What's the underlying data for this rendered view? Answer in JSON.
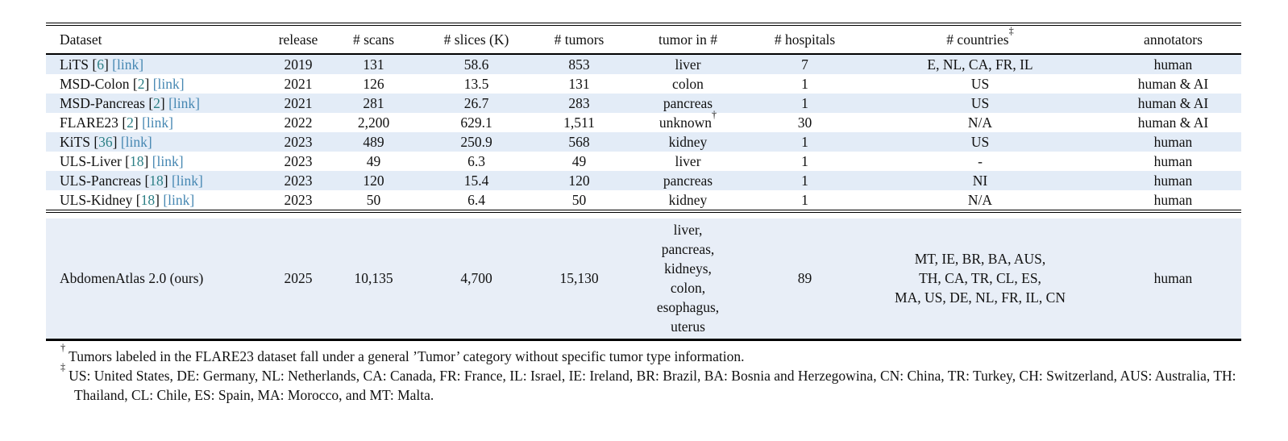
{
  "table": {
    "columns": [
      {
        "key": "dataset",
        "label": "Dataset",
        "sup": ""
      },
      {
        "key": "release",
        "label": "release",
        "sup": ""
      },
      {
        "key": "scans",
        "label": "# scans",
        "sup": ""
      },
      {
        "key": "slices",
        "label": "# slices (K)",
        "sup": ""
      },
      {
        "key": "tumors",
        "label": "# tumors",
        "sup": ""
      },
      {
        "key": "tumor_in",
        "label": "tumor in #",
        "sup": ""
      },
      {
        "key": "hospitals",
        "label": "# hospitals",
        "sup": ""
      },
      {
        "key": "countries",
        "label": "# countries",
        "sup": "‡"
      },
      {
        "key": "annotators",
        "label": "annotators",
        "sup": ""
      }
    ],
    "link_label": "[link]",
    "rows": [
      {
        "name": "LiTS",
        "cite": "6",
        "release": "2019",
        "scans": "131",
        "slices": "58.6",
        "tumors": "853",
        "tumor_in": "liver",
        "tumor_sup": "",
        "hospitals": "7",
        "countries": "E, NL, CA, FR, IL",
        "annotators": "human"
      },
      {
        "name": "MSD-Colon",
        "cite": "2",
        "release": "2021",
        "scans": "126",
        "slices": "13.5",
        "tumors": "131",
        "tumor_in": "colon",
        "tumor_sup": "",
        "hospitals": "1",
        "countries": "US",
        "annotators": "human & AI"
      },
      {
        "name": "MSD-Pancreas",
        "cite": "2",
        "release": "2021",
        "scans": "281",
        "slices": "26.7",
        "tumors": "283",
        "tumor_in": "pancreas",
        "tumor_sup": "",
        "hospitals": "1",
        "countries": "US",
        "annotators": "human & AI"
      },
      {
        "name": "FLARE23",
        "cite": "2",
        "release": "2022",
        "scans": "2,200",
        "slices": "629.1",
        "tumors": "1,511",
        "tumor_in": "unknown",
        "tumor_sup": "†",
        "hospitals": "30",
        "countries": "N/A",
        "annotators": "human & AI"
      },
      {
        "name": "KiTS",
        "cite": "36",
        "release": "2023",
        "scans": "489",
        "slices": "250.9",
        "tumors": "568",
        "tumor_in": "kidney",
        "tumor_sup": "",
        "hospitals": "1",
        "countries": "US",
        "annotators": "human"
      },
      {
        "name": "ULS-Liver",
        "cite": "18",
        "release": "2023",
        "scans": "49",
        "slices": "6.3",
        "tumors": "49",
        "tumor_in": "liver",
        "tumor_sup": "",
        "hospitals": "1",
        "countries": "-",
        "annotators": "human"
      },
      {
        "name": "ULS-Pancreas",
        "cite": "18",
        "release": "2023",
        "scans": "120",
        "slices": "15.4",
        "tumors": "120",
        "tumor_in": "pancreas",
        "tumor_sup": "",
        "hospitals": "1",
        "countries": "NI",
        "annotators": "human"
      },
      {
        "name": "ULS-Kidney",
        "cite": "18",
        "release": "2023",
        "scans": "50",
        "slices": "6.4",
        "tumors": "50",
        "tumor_in": "kidney",
        "tumor_sup": "",
        "hospitals": "1",
        "countries": "N/A",
        "annotators": "human"
      }
    ],
    "highlight_row": {
      "name": "AbdomenAtlas 2.0 (ours)",
      "release": "2025",
      "scans": "10,135",
      "slices": "4,700",
      "tumors": "15,130",
      "tumor_in_lines": [
        "liver,",
        "pancreas,",
        "kidneys,",
        "colon,",
        "esophagus,",
        "uterus"
      ],
      "hospitals": "89",
      "countries_lines": [
        "MT, IE, BR, BA, AUS,",
        "TH, CA, TR, CL, ES,",
        "MA, US, DE, NL, FR, IL, CN"
      ],
      "annotators": "human"
    }
  },
  "footnotes": [
    {
      "marker": "†",
      "text": "Tumors labeled in the FLARE23 dataset fall under a general ’Tumor’ category without specific tumor type information."
    },
    {
      "marker": "‡",
      "text": "US: United States, DE: Germany, NL: Netherlands, CA: Canada, FR: France, IL: Israel, IE: Ireland, BR: Brazil, BA: Bosnia and Herzegowina, CN: China, TR: Turkey, CH: Switzerland, AUS: Australia, TH: Thailand, CL: Chile, ES: Spain, MA: Morocco, and MT: Malta."
    }
  ],
  "colors": {
    "stripe": "#e3ecf7",
    "highlight": "#e8eef7",
    "cite": "#2c7f85",
    "link": "#4687b2",
    "rule": "#000000"
  }
}
